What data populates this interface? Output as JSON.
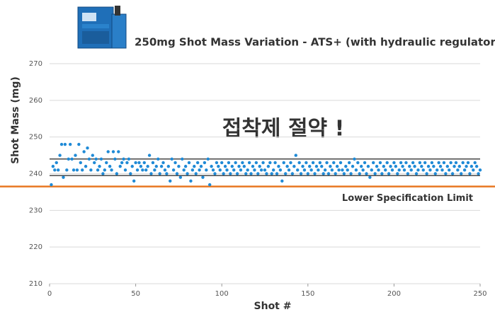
{
  "chart_data": {
    "type": "scatter",
    "title": "250mg Shot Mass Variation - ATS+ (with hydraulic regulator)",
    "x_label": "Shot #",
    "y_label": "Shot Mass (mg)",
    "annotation": "접착제 절약 !",
    "color": "#1f8ad6",
    "xlim": [
      0,
      250
    ],
    "xticks": [
      0,
      50,
      100,
      150,
      200,
      250
    ],
    "ylim": [
      210,
      270
    ],
    "yticks": [
      210,
      220,
      230,
      240,
      250,
      260,
      270
    ],
    "grid": true,
    "reference_lines": [
      244,
      239.5
    ],
    "spec_limit": {
      "label": "Lower Specification Limit",
      "value": 236.5,
      "color": "#e87722"
    },
    "x": [
      1,
      2,
      3,
      4,
      5,
      6,
      7,
      8,
      9,
      10,
      11,
      12,
      13,
      14,
      15,
      16,
      17,
      18,
      19,
      20,
      21,
      22,
      23,
      24,
      25,
      26,
      27,
      28,
      29,
      30,
      31,
      32,
      33,
      34,
      35,
      36,
      37,
      38,
      39,
      40,
      41,
      42,
      43,
      44,
      45,
      46,
      47,
      48,
      49,
      50,
      51,
      52,
      53,
      54,
      55,
      56,
      57,
      58,
      59,
      60,
      61,
      62,
      63,
      64,
      65,
      66,
      67,
      68,
      69,
      70,
      71,
      72,
      73,
      74,
      75,
      76,
      77,
      78,
      79,
      80,
      81,
      82,
      83,
      84,
      85,
      86,
      87,
      88,
      89,
      90,
      91,
      92,
      93,
      94,
      95,
      96,
      97,
      98,
      99,
      100,
      101,
      102,
      103,
      104,
      105,
      106,
      107,
      108,
      109,
      110,
      111,
      112,
      113,
      114,
      115,
      116,
      117,
      118,
      119,
      120,
      121,
      122,
      123,
      124,
      125,
      126,
      127,
      128,
      129,
      130,
      131,
      132,
      133,
      134,
      135,
      136,
      137,
      138,
      139,
      140,
      141,
      142,
      143,
      144,
      145,
      146,
      147,
      148,
      149,
      150,
      151,
      152,
      153,
      154,
      155,
      156,
      157,
      158,
      159,
      160,
      161,
      162,
      163,
      164,
      165,
      166,
      167,
      168,
      169,
      170,
      171,
      172,
      173,
      174,
      175,
      176,
      177,
      178,
      179,
      180,
      181,
      182,
      183,
      184,
      185,
      186,
      187,
      188,
      189,
      190,
      191,
      192,
      193,
      194,
      195,
      196,
      197,
      198,
      199,
      200,
      201,
      202,
      203,
      204,
      205,
      206,
      207,
      208,
      209,
      210,
      211,
      212,
      213,
      214,
      215,
      216,
      217,
      218,
      219,
      220,
      221,
      222,
      223,
      224,
      225,
      226,
      227,
      228,
      229,
      230,
      231,
      232,
      233,
      234,
      235,
      236,
      237,
      238,
      239,
      240,
      241,
      242,
      243,
      244,
      245,
      246,
      247,
      248,
      249,
      250
    ],
    "values": [
      237,
      242,
      241,
      243,
      241,
      245,
      248,
      239,
      248,
      241,
      244,
      248,
      244,
      241,
      245,
      241,
      248,
      243,
      241,
      246,
      242,
      247,
      244,
      241,
      245,
      243,
      244,
      241,
      242,
      244,
      240,
      241,
      243,
      246,
      242,
      241,
      246,
      244,
      240,
      246,
      242,
      243,
      244,
      241,
      243,
      244,
      240,
      242,
      238,
      243,
      241,
      243,
      242,
      241,
      243,
      241,
      242,
      245,
      240,
      243,
      241,
      242,
      244,
      240,
      242,
      243,
      241,
      240,
      242,
      238,
      244,
      241,
      243,
      240,
      242,
      239,
      244,
      241,
      242,
      240,
      243,
      238,
      241,
      242,
      240,
      243,
      241,
      242,
      239,
      243,
      241,
      244,
      237,
      242,
      241,
      240,
      243,
      242,
      241,
      243,
      240,
      242,
      241,
      243,
      240,
      242,
      241,
      243,
      240,
      242,
      241,
      243,
      242,
      240,
      241,
      243,
      240,
      242,
      241,
      243,
      240,
      242,
      241,
      243,
      241,
      240,
      242,
      243,
      240,
      241,
      243,
      240,
      242,
      241,
      238,
      243,
      240,
      242,
      241,
      243,
      240,
      242,
      245,
      241,
      243,
      240,
      242,
      241,
      243,
      240,
      242,
      241,
      243,
      240,
      242,
      241,
      243,
      242,
      240,
      241,
      243,
      240,
      242,
      241,
      243,
      240,
      242,
      241,
      243,
      241,
      240,
      242,
      241,
      243,
      240,
      242,
      244,
      241,
      243,
      240,
      242,
      241,
      243,
      240,
      242,
      239,
      241,
      243,
      240,
      242,
      241,
      243,
      240,
      242,
      241,
      243,
      240,
      242,
      241,
      243,
      242,
      240,
      241,
      243,
      242,
      241,
      243,
      240,
      242,
      241,
      243,
      242,
      240,
      241,
      243,
      242,
      241,
      243,
      240,
      242,
      241,
      243,
      242,
      240,
      241,
      243,
      242,
      241,
      243,
      240,
      242,
      241,
      243,
      240,
      242,
      243,
      241,
      242,
      240,
      243,
      241,
      242,
      243,
      240,
      242,
      241,
      243,
      242,
      240,
      241
    ]
  }
}
